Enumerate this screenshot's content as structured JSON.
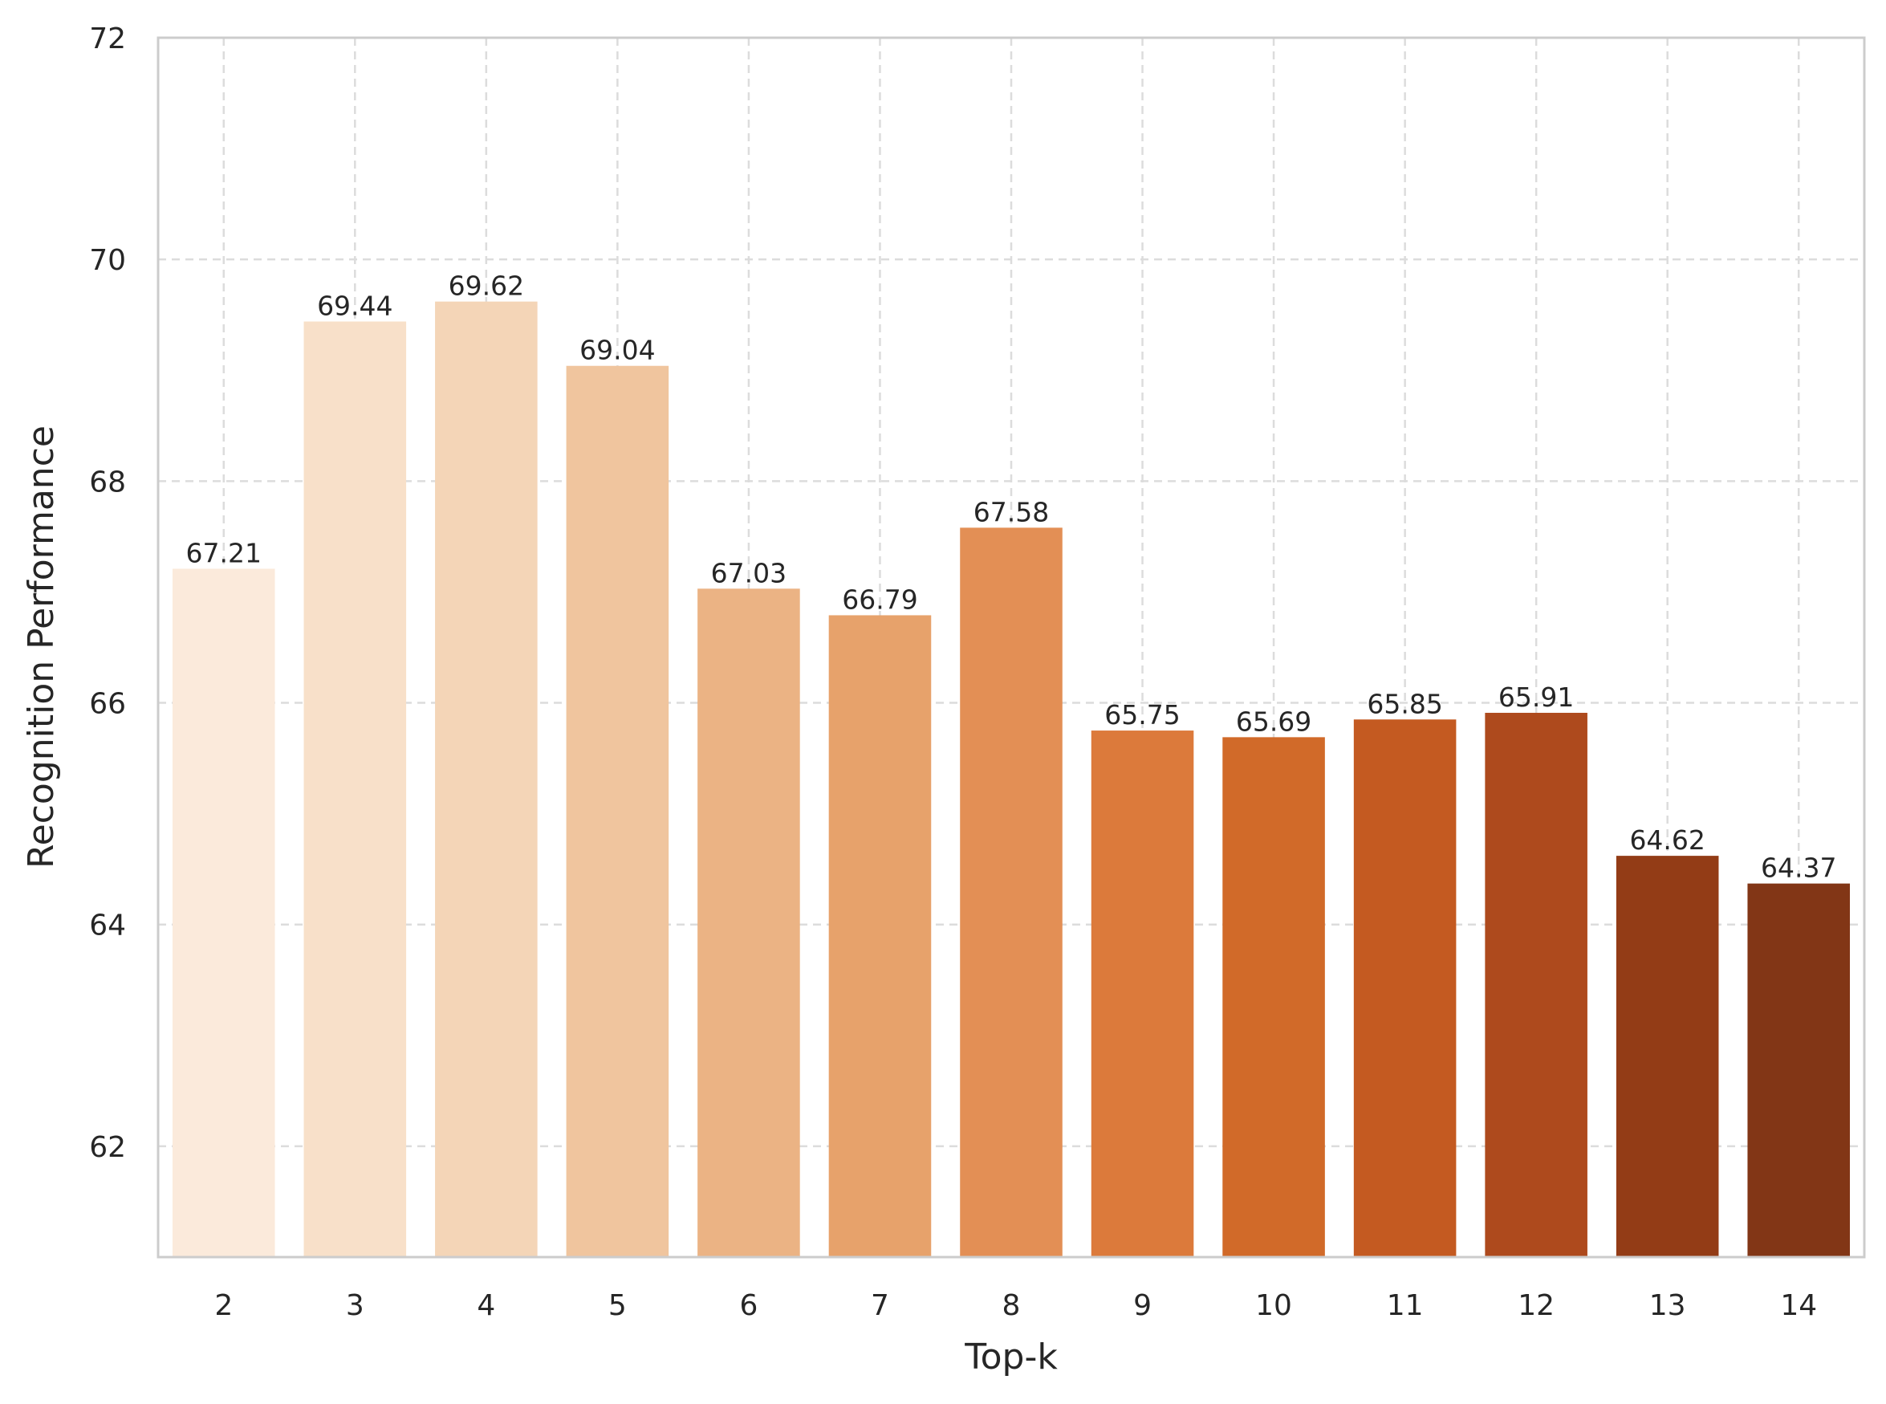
{
  "chart_data": {
    "type": "bar",
    "title": "",
    "xlabel": "Top-k",
    "ylabel": "Recognition Performance",
    "categories": [
      "2",
      "3",
      "4",
      "5",
      "6",
      "7",
      "8",
      "9",
      "10",
      "11",
      "12",
      "13",
      "14"
    ],
    "values": [
      67.21,
      69.44,
      69.62,
      69.04,
      67.03,
      66.79,
      67.58,
      65.75,
      65.69,
      65.85,
      65.91,
      64.62,
      64.37
    ],
    "value_labels": [
      "67.21",
      "69.44",
      "69.62",
      "69.04",
      "67.03",
      "66.79",
      "67.58",
      "65.75",
      "65.69",
      "65.85",
      "65.91",
      "64.62",
      "64.37"
    ],
    "colors": [
      "#fbeadb",
      "#f8e0c9",
      "#f4d5b7",
      "#f0c59e",
      "#ebb384",
      "#e7a26b",
      "#e38f55",
      "#dc7a3b",
      "#d16a29",
      "#c45a21",
      "#ae4a1d",
      "#933c16",
      "#823616"
    ],
    "ylim": [
      61,
      72
    ],
    "yticks": [
      62,
      64,
      66,
      68,
      70,
      72
    ],
    "ytick_labels": [
      "62",
      "64",
      "66",
      "68",
      "70",
      "72"
    ],
    "grid": true
  }
}
